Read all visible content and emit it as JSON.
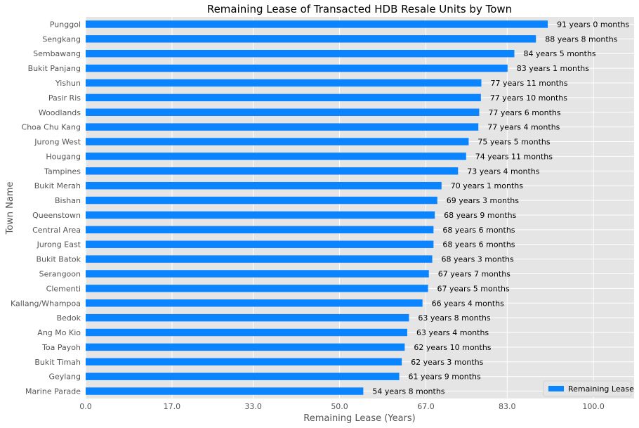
{
  "chart_data": {
    "type": "bar",
    "orientation": "horizontal",
    "title": "Remaining Lease of Transacted HDB Resale Units by Town",
    "xlabel": "Remaining Lease (Years)",
    "ylabel": "Town Name",
    "xlim": [
      0,
      108
    ],
    "xticks": [
      "0.0",
      "17.0",
      "33.0",
      "50.0",
      "67.0",
      "83.0",
      "100.0"
    ],
    "grid": true,
    "legend": {
      "position": "bottom-right",
      "entries": [
        "Remaining Lease"
      ]
    },
    "bar_color": "#0a84ff",
    "categories": [
      "Punggol",
      "Sengkang",
      "Sembawang",
      "Bukit Panjang",
      "Yishun",
      "Pasir Ris",
      "Woodlands",
      "Choa Chu Kang",
      "Jurong West",
      "Hougang",
      "Tampines",
      "Bukit Merah",
      "Bishan",
      "Queenstown",
      "Central Area",
      "Jurong East",
      "Bukit Batok",
      "Serangoon",
      "Clementi",
      "Kallang/Whampoa",
      "Bedok",
      "Ang Mo Kio",
      "Toa Payoh",
      "Bukit Timah",
      "Geylang",
      "Marine Parade"
    ],
    "series": [
      {
        "name": "Remaining Lease",
        "values": [
          91.0,
          88.67,
          84.42,
          83.08,
          77.92,
          77.83,
          77.5,
          77.33,
          75.42,
          74.92,
          73.33,
          70.08,
          69.25,
          68.75,
          68.5,
          68.5,
          68.25,
          67.58,
          67.42,
          66.33,
          63.67,
          63.33,
          62.83,
          62.25,
          61.75,
          54.67
        ],
        "labels": [
          "91 years 0 months",
          "88 years 8 months",
          "84 years 5 months",
          "83 years 1 months",
          "77 years 11 months",
          "77 years 10 months",
          "77 years 6 months",
          "77 years 4 months",
          "75 years 5 months",
          "74 years 11 months",
          "73 years 4 months",
          "70 years 1 months",
          "69 years 3 months",
          "68 years 9 months",
          "68 years 6 months",
          "68 years 6 months",
          "68 years 3 months",
          "67 years 7 months",
          "67 years 5 months",
          "66 years 4 months",
          "63 years 8 months",
          "63 years 4 months",
          "62 years 10 months",
          "62 years 3 months",
          "61 years 9 months",
          "54 years 8 months"
        ]
      }
    ]
  }
}
